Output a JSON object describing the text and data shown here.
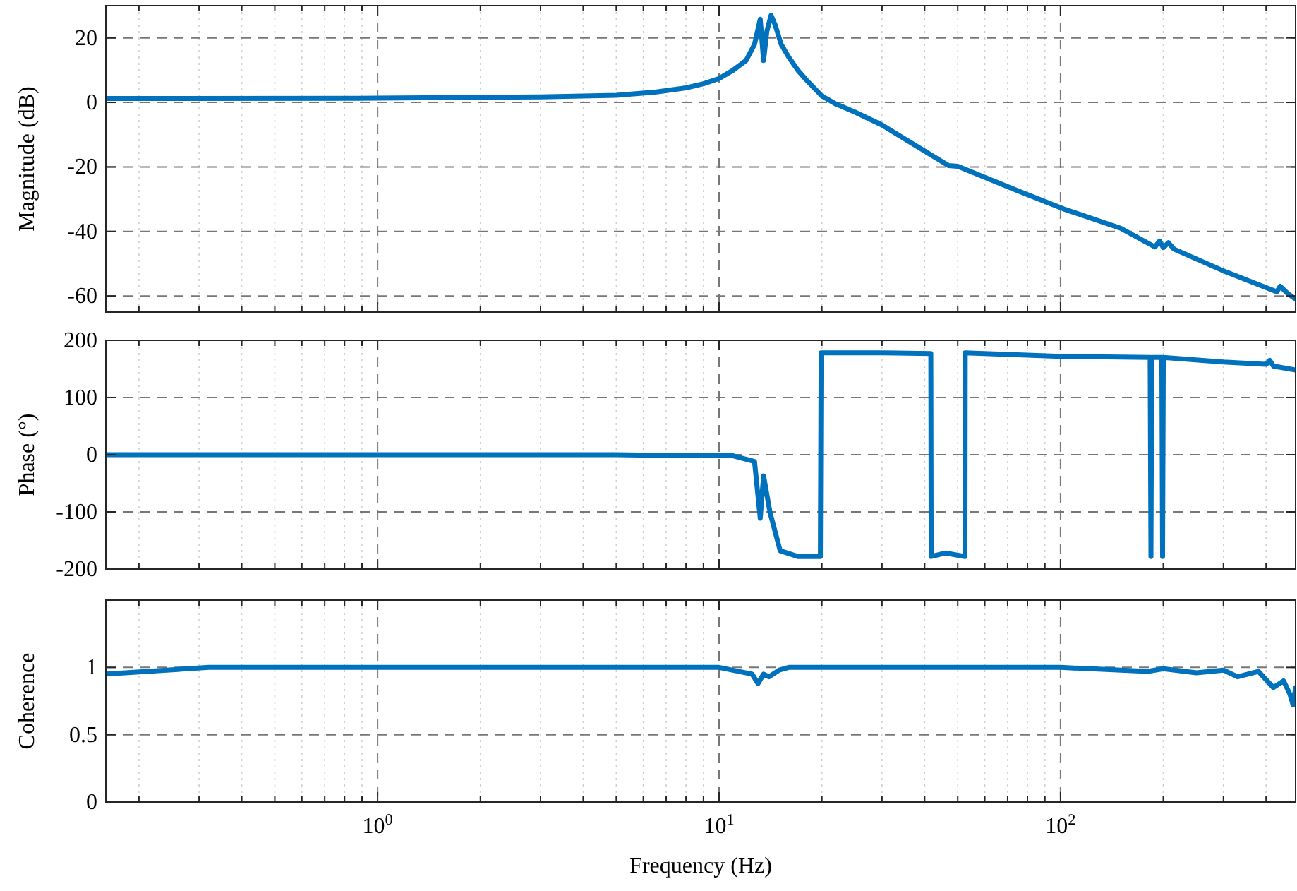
{
  "chart_data": [
    {
      "type": "line",
      "ylabel": "Magnitude (dB)",
      "log": "x",
      "grid": true,
      "tick_labels": "y",
      "xlim": [
        0.16,
        488
      ],
      "ylim": [
        -65,
        30
      ],
      "yticks": [
        -60,
        -40,
        -20,
        0,
        20
      ],
      "xticks": [
        0.2,
        0.3,
        0.4,
        0.5,
        0.6,
        0.7,
        0.8,
        0.9,
        1,
        2,
        3,
        4,
        5,
        6,
        7,
        8,
        9,
        10,
        20,
        30,
        40,
        50,
        60,
        70,
        80,
        90,
        100,
        200,
        300,
        400
      ],
      "series": [
        {
          "color": "#0072bd",
          "x": [
            0.16,
            1,
            3,
            5,
            6.5,
            8,
            9,
            10,
            11,
            12,
            12.7,
            13.2,
            13.5,
            13.8,
            14.2,
            14.6,
            15.2,
            16,
            17,
            18,
            20,
            22,
            25,
            30,
            47,
            50,
            75,
            102,
            150,
            189,
            195,
            200,
            207,
            215,
            306,
            430,
            440,
            460,
            488
          ],
          "values": [
            1.2,
            1.3,
            1.7,
            2.2,
            3.2,
            4.5,
            5.8,
            7.4,
            10,
            13,
            18,
            25.8,
            13,
            22,
            27,
            24,
            18,
            14,
            10,
            7,
            2,
            -0.5,
            -3,
            -7,
            -19.6,
            -19.8,
            -27.4,
            -33,
            -39,
            -44.8,
            -43,
            -45,
            -43.5,
            -45.5,
            -52.6,
            -58.7,
            -57,
            -59,
            -61
          ]
        }
      ]
    },
    {
      "type": "line",
      "ylabel": "Phase (°)",
      "log": "x",
      "grid": true,
      "tick_labels": "y",
      "xlim": [
        0.16,
        488
      ],
      "ylim": [
        -200,
        200
      ],
      "yticks": [
        -200,
        -100,
        0,
        100,
        200
      ],
      "xticks": [
        0.2,
        0.3,
        0.4,
        0.5,
        0.6,
        0.7,
        0.8,
        0.9,
        1,
        2,
        3,
        4,
        5,
        6,
        7,
        8,
        9,
        10,
        20,
        30,
        40,
        50,
        60,
        70,
        80,
        90,
        100,
        200,
        300,
        400
      ],
      "series": [
        {
          "color": "#0072bd",
          "x": [
            0.16,
            1,
            5,
            8,
            10,
            11,
            12.7,
            13.2,
            13.5,
            14.1,
            15.1,
            17,
            19.8,
            19.9,
            30,
            41.7,
            41.8,
            46,
            52.5,
            52.6,
            100,
            183,
            184,
            185,
            198,
            199,
            200,
            300,
            400,
            410,
            420,
            488
          ],
          "values": [
            0,
            0,
            0,
            -2,
            -1,
            -2,
            -12,
            -111,
            -37,
            -101,
            -168,
            -178,
            -178,
            178,
            178,
            177,
            -178,
            -172,
            -178,
            178,
            172,
            170,
            -178,
            170,
            170,
            -178,
            170,
            162,
            158,
            165,
            155,
            148
          ]
        }
      ]
    },
    {
      "type": "line",
      "ylabel": "Coherence",
      "xlabel": "Frequency (Hz)",
      "log": "x",
      "grid": true,
      "xlim": [
        0.16,
        488
      ],
      "ylim": [
        0,
        1.5
      ],
      "yticks": [
        0,
        0.5,
        1
      ],
      "xticks": [
        {
          "value": 0.2,
          "label": null
        },
        {
          "value": 0.3,
          "label": null
        },
        {
          "value": 0.4,
          "label": null
        },
        {
          "value": 0.5,
          "label": null
        },
        {
          "value": 0.6,
          "label": null
        },
        {
          "value": 0.7,
          "label": null
        },
        {
          "value": 0.8,
          "label": null
        },
        {
          "value": 0.9,
          "label": null
        },
        {
          "value": 1,
          "label": "10$^{0}$"
        },
        {
          "value": 2,
          "label": null
        },
        {
          "value": 3,
          "label": null
        },
        {
          "value": 4,
          "label": null
        },
        {
          "value": 5,
          "label": null
        },
        {
          "value": 6,
          "label": null
        },
        {
          "value": 7,
          "label": null
        },
        {
          "value": 8,
          "label": null
        },
        {
          "value": 9,
          "label": null
        },
        {
          "value": 10,
          "label": "10$^{1}$"
        },
        {
          "value": 20,
          "label": null
        },
        {
          "value": 30,
          "label": null
        },
        {
          "value": 40,
          "label": null
        },
        {
          "value": 50,
          "label": null
        },
        {
          "value": 60,
          "label": null
        },
        {
          "value": 70,
          "label": null
        },
        {
          "value": 80,
          "label": null
        },
        {
          "value": 90,
          "label": null
        },
        {
          "value": 100,
          "label": "10$^{2}$"
        },
        {
          "value": 200,
          "label": null
        },
        {
          "value": 300,
          "label": null
        },
        {
          "value": 400,
          "label": null
        }
      ],
      "series": [
        {
          "color": "#0072bd",
          "x": [
            0.16,
            0.32,
            10,
            12.5,
            13,
            13.5,
            14,
            15,
            16,
            100,
            180,
            200,
            250,
            300,
            330,
            380,
            420,
            450,
            470,
            480,
            488
          ],
          "values": [
            0.95,
            1,
            1,
            0.95,
            0.88,
            0.95,
            0.93,
            0.98,
            1,
            1,
            0.97,
            0.99,
            0.96,
            0.98,
            0.93,
            0.97,
            0.85,
            0.9,
            0.8,
            0.72,
            0.85
          ]
        }
      ]
    }
  ]
}
